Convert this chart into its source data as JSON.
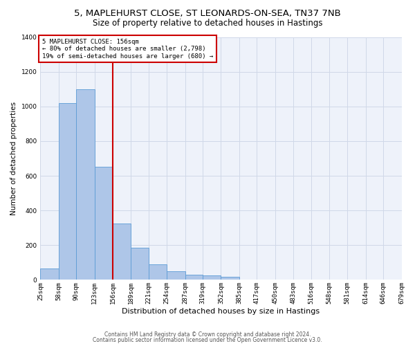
{
  "title1": "5, MAPLEHURST CLOSE, ST LEONARDS-ON-SEA, TN37 7NB",
  "title2": "Size of property relative to detached houses in Hastings",
  "xlabel": "Distribution of detached houses by size in Hastings",
  "ylabel": "Number of detached properties",
  "footer1": "Contains HM Land Registry data © Crown copyright and database right 2024.",
  "footer2": "Contains public sector information licensed under the Open Government Licence v3.0.",
  "annotation_title": "5 MAPLEHURST CLOSE: 156sqm",
  "annotation_line1": "← 80% of detached houses are smaller (2,798)",
  "annotation_line2": "19% of semi-detached houses are larger (680) →",
  "property_size": 156,
  "bar_edges": [
    25,
    58,
    90,
    123,
    156,
    189,
    221,
    254,
    287,
    319,
    352,
    385,
    417,
    450,
    483,
    516,
    548,
    581,
    614,
    646,
    679
  ],
  "bar_values": [
    65,
    1020,
    1100,
    650,
    325,
    185,
    90,
    48,
    30,
    25,
    18,
    0,
    0,
    0,
    0,
    0,
    0,
    0,
    0,
    0
  ],
  "bar_color": "#aec6e8",
  "bar_edge_color": "#5b9bd5",
  "vline_color": "#cc0000",
  "annotation_box_color": "#cc0000",
  "grid_color": "#d0d8e8",
  "bg_color": "#eef2fa",
  "title_fontsize": 9.5,
  "subtitle_fontsize": 8.5,
  "ylabel_fontsize": 7.5,
  "xlabel_fontsize": 8,
  "tick_fontsize": 6.5,
  "annotation_fontsize": 6.5,
  "footer_fontsize": 5.5,
  "tick_labels": [
    "25sqm",
    "58sqm",
    "90sqm",
    "123sqm",
    "156sqm",
    "189sqm",
    "221sqm",
    "254sqm",
    "287sqm",
    "319sqm",
    "352sqm",
    "385sqm",
    "417sqm",
    "450sqm",
    "483sqm",
    "516sqm",
    "548sqm",
    "581sqm",
    "614sqm",
    "646sqm",
    "679sqm"
  ],
  "ylim": [
    0,
    1400
  ],
  "yticks": [
    0,
    200,
    400,
    600,
    800,
    1000,
    1200,
    1400
  ]
}
